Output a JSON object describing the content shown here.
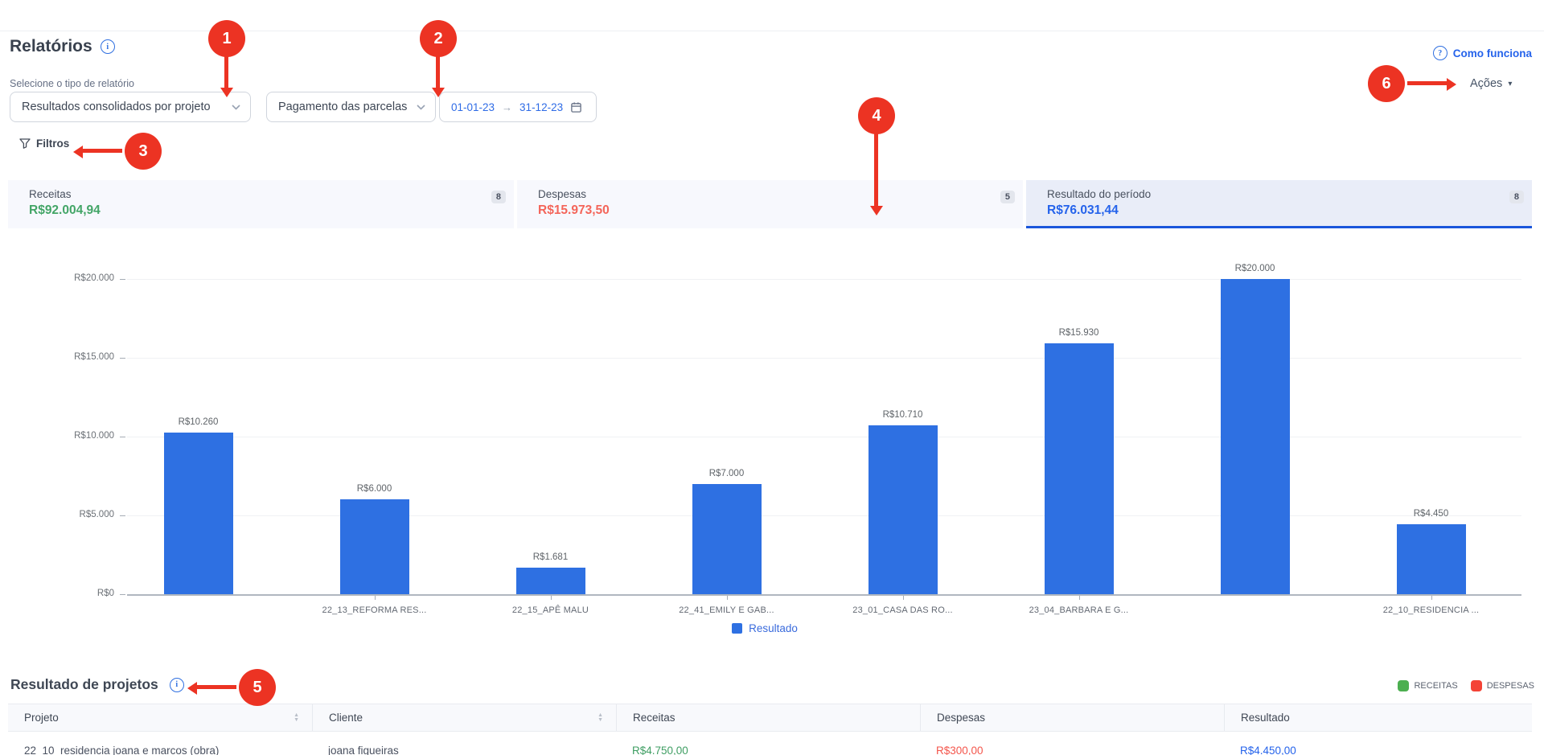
{
  "icons": {
    "info": "i",
    "help": "?",
    "caret_down": "▾",
    "date_arrow": "→",
    "sort_up": "▲",
    "sort_down": "▼"
  },
  "header": {
    "title": "Relatórios",
    "como_funciona": "Como funciona",
    "acoes": "Ações"
  },
  "controls": {
    "select_label": "Selecione o tipo de relatório",
    "report_type": "Resultados consolidados por projeto",
    "payment_filter": "Pagamento das parcelas",
    "date_start": "01-01-23",
    "date_end": "31-12-23",
    "filtros": "Filtros"
  },
  "summary_cards": [
    {
      "label": "Receitas",
      "value": "R$92.004,94",
      "badge": "8"
    },
    {
      "label": "Despesas",
      "value": "R$15.973,50",
      "badge": "5"
    },
    {
      "label": "Resultado do período",
      "value": "R$76.031,44",
      "badge": "8"
    }
  ],
  "chart_data": {
    "type": "bar",
    "title": "",
    "xlabel": "",
    "ylabel": "",
    "categories": [
      "",
      "22_13_REFORMA RES...",
      "22_15_APÊ MALU",
      "22_41_EMILY E GAB...",
      "23_01_CASA DAS RO...",
      "23_04_BARBARA E G...",
      "",
      "22_10_RESIDENCIA ..."
    ],
    "values": [
      10260,
      6000,
      1681,
      7000,
      10710,
      15930,
      20000,
      4450
    ],
    "bar_labels": [
      "R$10.260",
      "R$6.000",
      "R$1.681",
      "R$7.000",
      "R$10.710",
      "R$15.930",
      "R$20.000",
      "R$4.450"
    ],
    "y_tick_labels": [
      "R$20.000",
      "R$15.000",
      "R$10.000",
      "R$5.000",
      "R$0"
    ],
    "y_tick_values": [
      20000,
      15000,
      10000,
      5000,
      0
    ],
    "ylim": [
      0,
      21500
    ],
    "grid": true,
    "bar_color": "#2e70e2",
    "legend": [
      {
        "label": "Resultado",
        "color": "#2e70e2"
      }
    ],
    "legend_position": "bottom"
  },
  "annotations": [
    "1",
    "2",
    "3",
    "4",
    "5",
    "6"
  ],
  "annotation_color": "#ec3323",
  "projects": {
    "title": "Resultado de projetos",
    "legend": [
      {
        "label": "RECEITAS",
        "color": "#4caf50"
      },
      {
        "label": "DESPESAS",
        "color": "#f44336"
      }
    ],
    "columns": [
      {
        "label": "Projeto",
        "sortable": true
      },
      {
        "label": "Cliente",
        "sortable": true
      },
      {
        "label": "Receitas",
        "sortable": false
      },
      {
        "label": "Despesas",
        "sortable": false
      },
      {
        "label": "Resultado",
        "sortable": false
      }
    ],
    "rows": [
      {
        "projeto": "22_10_residencia joana e marcos (obra)",
        "cliente": "joana figueiras",
        "receitas": "R$4.750,00",
        "despesas": "R$300,00",
        "resultado": "R$4.450,00"
      }
    ]
  }
}
